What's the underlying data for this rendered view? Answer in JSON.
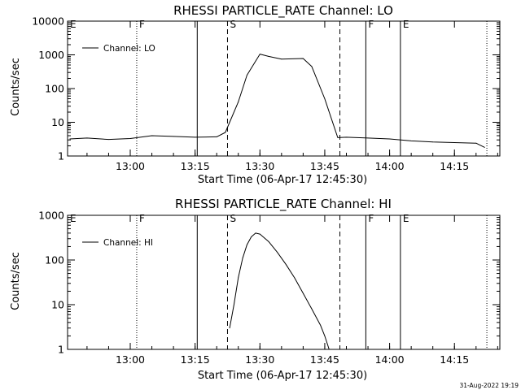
{
  "footer": {
    "timestamp": "31-Aug-2022 19:19"
  },
  "chart_data": [
    {
      "type": "line",
      "title": "RHESSI PARTICLE_RATE Channel: LO",
      "xlabel": "Start Time (06-Apr-17 12:45:30)",
      "ylabel": "Counts/sec",
      "yscale": "log",
      "xlim": [
        "12:45:30",
        "14:25:30"
      ],
      "ylim": [
        1,
        10000
      ],
      "x_ticks": [
        "13:00",
        "13:15",
        "13:30",
        "13:45",
        "14:00",
        "14:15"
      ],
      "y_ticks": [
        "1",
        "10",
        "100",
        "1000",
        "10000"
      ],
      "legend": {
        "position": "top-left",
        "entries": [
          "Channel: LO"
        ]
      },
      "markers": [
        {
          "time": "12:45:30",
          "style": "dotted",
          "label": "E"
        },
        {
          "time": "13:01:30",
          "style": "dotted",
          "label": "F"
        },
        {
          "time": "13:15:30",
          "style": "solid",
          "label": ""
        },
        {
          "time": "13:22:30",
          "style": "dashed",
          "label": "S"
        },
        {
          "time": "13:48:30",
          "style": "dashed",
          "label": ""
        },
        {
          "time": "13:54:30",
          "style": "solid",
          "label": "F"
        },
        {
          "time": "14:02:30",
          "style": "solid",
          "label": "E"
        },
        {
          "time": "14:22:30",
          "style": "dotted",
          "label": ""
        }
      ],
      "series": [
        {
          "name": "Channel: LO",
          "x": [
            "12:46",
            "12:50",
            "12:55",
            "13:00",
            "13:05",
            "13:10",
            "13:15",
            "13:20",
            "13:22",
            "13:25",
            "13:27",
            "13:30",
            "13:32",
            "13:35",
            "13:40",
            "13:42",
            "13:45",
            "13:48",
            "13:50",
            "13:55",
            "14:00",
            "14:05",
            "14:10",
            "14:15",
            "14:20",
            "14:22"
          ],
          "values": [
            3.2,
            3.4,
            3.1,
            3.3,
            4.0,
            3.8,
            3.6,
            3.7,
            5,
            40,
            250,
            1050,
            900,
            750,
            780,
            450,
            50,
            3.5,
            3.6,
            3.4,
            3.2,
            2.8,
            2.6,
            2.5,
            2.4,
            1.8
          ]
        }
      ]
    },
    {
      "type": "line",
      "title": "RHESSI PARTICLE_RATE Channel: HI",
      "xlabel": "Start Time (06-Apr-17 12:45:30)",
      "ylabel": "Counts/sec",
      "yscale": "log",
      "xlim": [
        "12:45:30",
        "14:25:30"
      ],
      "ylim": [
        1,
        1000
      ],
      "x_ticks": [
        "13:00",
        "13:15",
        "13:30",
        "13:45",
        "14:00",
        "14:15"
      ],
      "y_ticks": [
        "1",
        "10",
        "100",
        "1000"
      ],
      "legend": {
        "position": "top-left",
        "entries": [
          "Channel: HI"
        ]
      },
      "markers": [
        {
          "time": "12:45:30",
          "style": "dotted",
          "label": "E"
        },
        {
          "time": "13:01:30",
          "style": "dotted",
          "label": "F"
        },
        {
          "time": "13:15:30",
          "style": "solid",
          "label": ""
        },
        {
          "time": "13:22:30",
          "style": "dashed",
          "label": "S"
        },
        {
          "time": "13:48:30",
          "style": "dashed",
          "label": ""
        },
        {
          "time": "13:54:30",
          "style": "solid",
          "label": "F"
        },
        {
          "time": "14:02:30",
          "style": "solid",
          "label": "E"
        },
        {
          "time": "14:22:30",
          "style": "dotted",
          "label": ""
        }
      ],
      "series": [
        {
          "name": "Channel: HI",
          "x": [
            "13:23",
            "13:24",
            "13:25",
            "13:26",
            "13:27",
            "13:28",
            "13:29",
            "13:30",
            "13:32",
            "13:34",
            "13:36",
            "13:38",
            "13:40",
            "13:42",
            "13:44",
            "13:45",
            "13:46"
          ],
          "values": [
            3,
            10,
            40,
            110,
            220,
            330,
            400,
            380,
            260,
            150,
            80,
            40,
            18,
            8,
            3.5,
            2,
            1
          ]
        }
      ]
    }
  ]
}
